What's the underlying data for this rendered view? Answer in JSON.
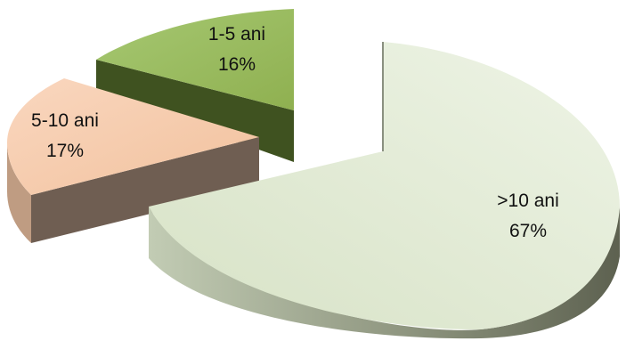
{
  "chart_data": {
    "type": "pie",
    "title": "",
    "style": "3d-exploded",
    "slices": [
      {
        "label": "1-5 ani",
        "value": 16,
        "display": "16%",
        "color": "#98bb5b"
      },
      {
        "label": "5-10 ani",
        "value": 17,
        "display": "17%",
        "color": "#f6cbac"
      },
      {
        "label": ">10 ani",
        "value": 67,
        "display": "67%",
        "color": "#e3edd6"
      }
    ]
  }
}
